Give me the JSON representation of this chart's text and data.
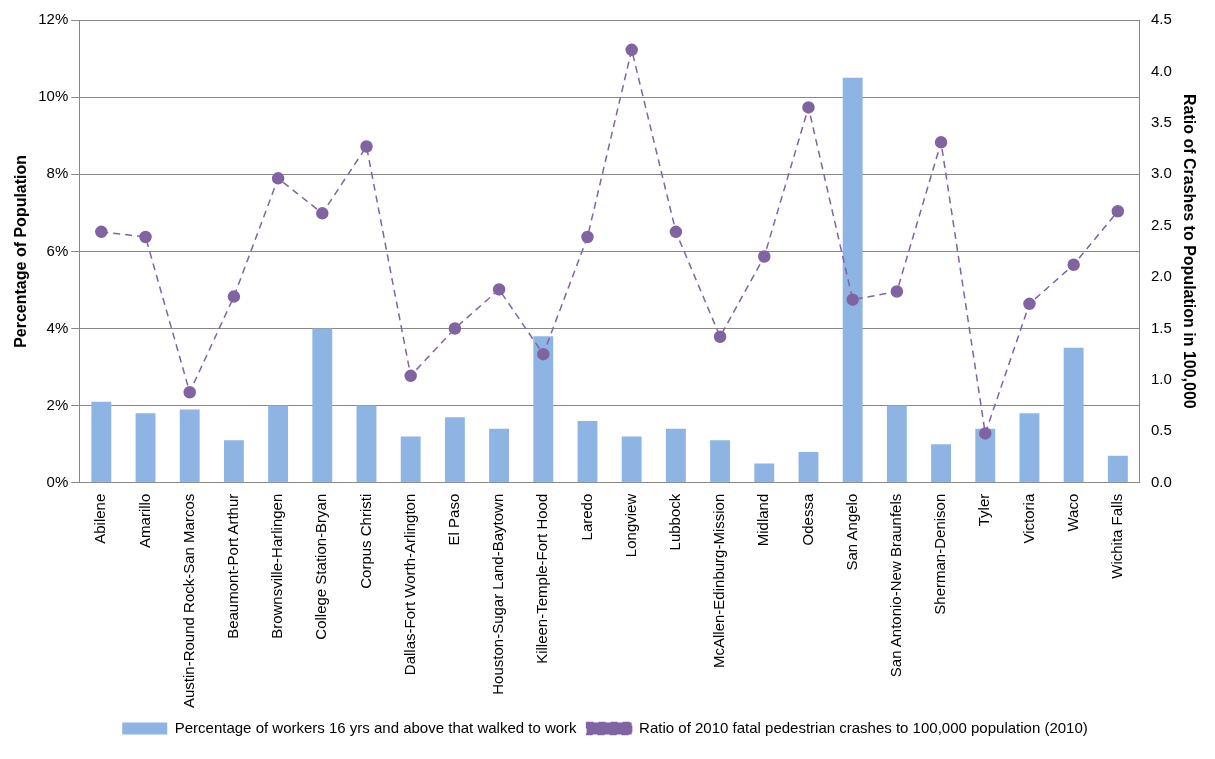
{
  "chart_data": {
    "type": "bar",
    "ylabel": "Percentage of Population",
    "y2label": "Ratio of Crashes to Population in 100,000",
    "categories": [
      "Abilene",
      "Amarillo",
      "Austin-Round Rock-San Marcos",
      "Beaumont-Port Arthur",
      "Brownsville-Harlingen",
      "College Station-Bryan",
      "Corpus Christi",
      "Dallas-Fort Worth-Arlington",
      "El Paso",
      "Houston-Sugar Land-Baytown",
      "Killeen-Temple-Fort Hood",
      "Laredo",
      "Longview",
      "Lubbock",
      "McAllen-Edinburg-Mission",
      "Midland",
      "Odessa",
      "San Angelo",
      "San Antonio-New Braunfels",
      "Sherman-Denison",
      "Tyler",
      "Victoria",
      "Waco",
      "Wichita Falls"
    ],
    "series": [
      {
        "name": "Percentage of workers 16 yrs and above that walked to work",
        "color": "#8eb4e3",
        "values": [
          2.1,
          1.8,
          1.9,
          1.1,
          2.0,
          4.0,
          2.0,
          1.2,
          1.7,
          1.4,
          3.8,
          1.6,
          1.2,
          1.4,
          1.1,
          0.5,
          0.8,
          10.5,
          2.0,
          1.0,
          1.4,
          1.8,
          3.5,
          0.7
        ]
      },
      {
        "name": "Ratio of 2010 fatal pedestrian crashes to 100,000 population (2010)",
        "type": "line",
        "axis": "y2",
        "color": "#8064a2",
        "marker": "circle",
        "line_style": "dashed",
        "values": [
          2.44,
          2.39,
          0.88,
          1.81,
          2.96,
          2.62,
          3.27,
          1.04,
          1.5,
          1.88,
          1.25,
          2.39,
          4.21,
          2.44,
          1.42,
          2.2,
          3.65,
          1.78,
          1.86,
          3.31,
          0.48,
          1.74,
          2.12,
          2.64
        ]
      }
    ],
    "ylim": [
      0,
      12
    ],
    "yticks": [
      {
        "value": 0,
        "label": "0%"
      },
      {
        "value": 2,
        "label": "2%"
      },
      {
        "value": 4,
        "label": "4%"
      },
      {
        "value": 6,
        "label": "6%"
      },
      {
        "value": 8,
        "label": "8%"
      },
      {
        "value": 10,
        "label": "10%"
      },
      {
        "value": 12,
        "label": "12%"
      }
    ],
    "y2lim": [
      0,
      4.5
    ],
    "y2ticks": [
      {
        "value": 0,
        "label": "0.0"
      },
      {
        "value": 0.5,
        "label": "0.5"
      },
      {
        "value": 1,
        "label": "1.0"
      },
      {
        "value": 1.5,
        "label": "1.5"
      },
      {
        "value": 2,
        "label": "2.0"
      },
      {
        "value": 2.5,
        "label": "2.5"
      },
      {
        "value": 3,
        "label": "3.0"
      },
      {
        "value": 3.5,
        "label": "3.5"
      },
      {
        "value": 4,
        "label": "4.0"
      },
      {
        "value": 4.5,
        "label": "4.5"
      }
    ],
    "grid": "y",
    "legend": "bottom"
  }
}
